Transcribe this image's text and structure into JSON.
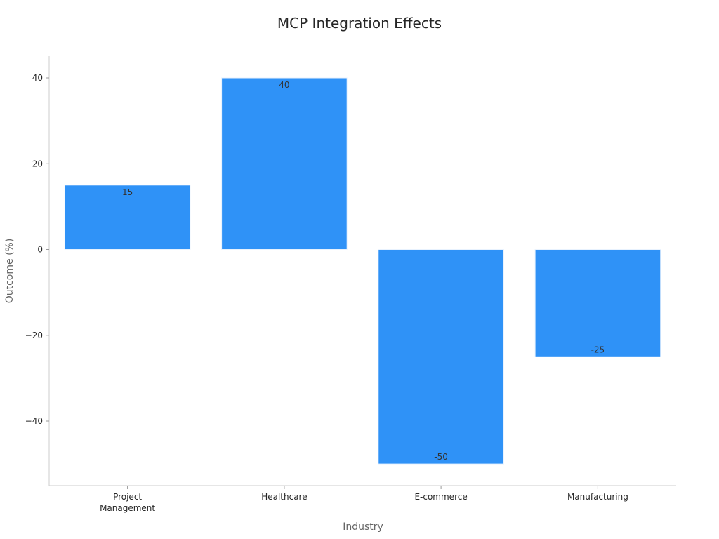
{
  "chart_data": {
    "type": "bar",
    "title": "MCP Integration Effects",
    "xlabel": "Industry",
    "ylabel": "Outcome (%)",
    "categories": [
      "Project Management",
      "Healthcare",
      "E-commerce",
      "Manufacturing"
    ],
    "category_lines": [
      [
        "Project",
        "Management"
      ],
      [
        "Healthcare"
      ],
      [
        "E-commerce"
      ],
      [
        "Manufacturing"
      ]
    ],
    "values": [
      15,
      40,
      -50,
      -25
    ],
    "data_labels": [
      "15",
      "40",
      "-50",
      "-25"
    ],
    "ylim": [
      -55,
      45
    ],
    "yticks": [
      -40,
      -20,
      0,
      20,
      40
    ],
    "ytick_labels": [
      "−40",
      "−20",
      "0",
      "20",
      "40"
    ],
    "bar_color": "#2f92f7",
    "grid": false,
    "legend": "none"
  }
}
